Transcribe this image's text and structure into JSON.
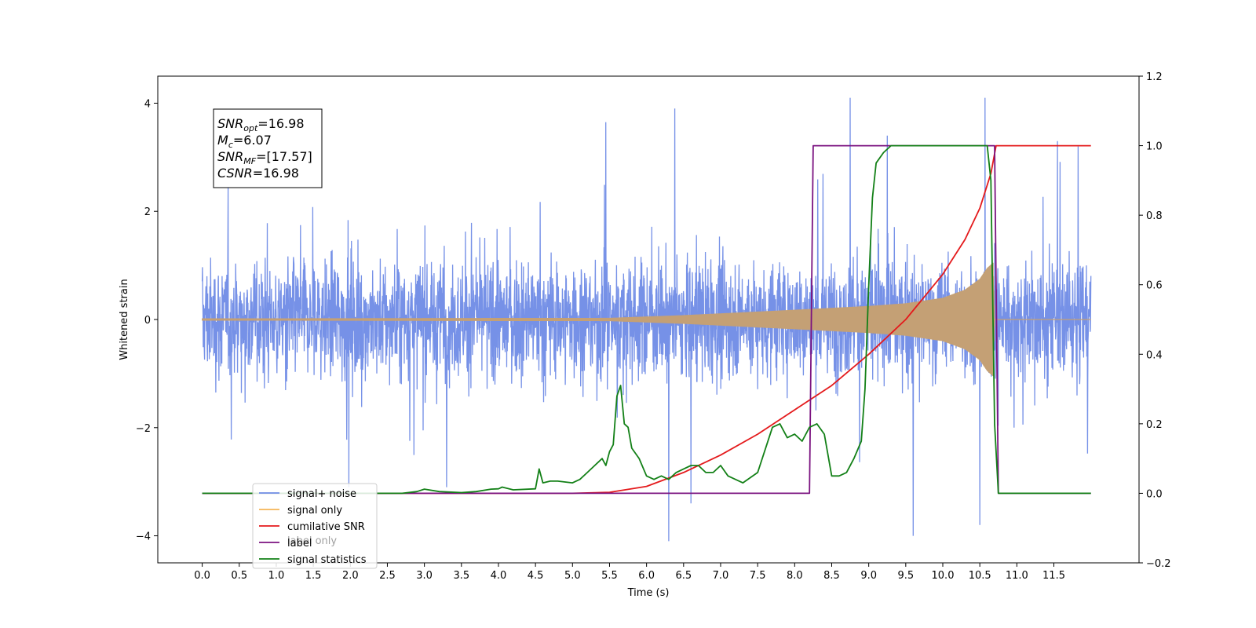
{
  "chart_data": {
    "type": "line",
    "xlabel": "Time (s)",
    "ylabel_left": "Whitened strain",
    "ylabel_right": "",
    "xlim": [
      -0.6,
      12.65
    ],
    "ylim_left": [
      -4.5,
      4.5
    ],
    "ylim_right": [
      -0.2,
      1.2
    ],
    "x_ticks": [
      0.0,
      0.5,
      1.0,
      1.5,
      2.0,
      2.5,
      3.0,
      3.5,
      4.0,
      4.5,
      5.0,
      5.5,
      6.0,
      6.5,
      7.0,
      7.5,
      8.0,
      8.5,
      9.0,
      9.5,
      10.0,
      10.5,
      11.0,
      11.5
    ],
    "x_tick_labels": [
      "0.0",
      "0.5",
      "1.0",
      "1.5",
      "2.0",
      "2.5",
      "3.0",
      "3.5",
      "4.0",
      "4.5",
      "5.0",
      "5.5",
      "6.0",
      "6.5",
      "7.0",
      "7.5",
      "8.0",
      "8.5",
      "9.0",
      "9.5",
      "10.0",
      "10.5",
      "11.0",
      "11.5"
    ],
    "y_left_ticks": [
      -4,
      -2,
      0,
      2,
      4
    ],
    "y_left_tick_labels": [
      "−4",
      "−2",
      "0",
      "2",
      "4"
    ],
    "y_right_ticks": [
      -0.2,
      0.0,
      0.2,
      0.4,
      0.6,
      0.8,
      1.0,
      1.2
    ],
    "y_right_tick_labels": [
      "−0.2",
      "0.0",
      "0.2",
      "0.4",
      "0.6",
      "0.8",
      "1.0",
      "1.2"
    ],
    "grid": false,
    "legend_position": "lower-left",
    "series": [
      {
        "name": "signal+ noise",
        "axis": "left",
        "color": "#6f8be6",
        "kind": "noise-trace",
        "x_range": [
          0.0,
          12.0
        ],
        "amplitude_typical": 1.0,
        "extremes": [
          {
            "x": 1.98,
            "y": -3.1
          },
          {
            "x": 5.45,
            "y": 3.65
          },
          {
            "x": 6.38,
            "y": 3.9
          },
          {
            "x": 6.3,
            "y": -4.1
          },
          {
            "x": 8.75,
            "y": 4.1
          },
          {
            "x": 9.25,
            "y": 3.4
          },
          {
            "x": 9.6,
            "y": -4.0
          },
          {
            "x": 10.57,
            "y": 4.1
          },
          {
            "x": 10.5,
            "y": -3.8
          },
          {
            "x": 11.55,
            "y": 3.3
          },
          {
            "x": 3.3,
            "y": -3.1
          },
          {
            "x": 6.6,
            "y": -3.4
          }
        ]
      },
      {
        "name": "signal only",
        "axis": "left",
        "color": "#c4a075",
        "kind": "chirp",
        "x_range": [
          0.0,
          10.7
        ],
        "envelope": [
          [
            0.0,
            0.02
          ],
          [
            5.5,
            0.03
          ],
          [
            6.5,
            0.08
          ],
          [
            8.0,
            0.18
          ],
          [
            9.0,
            0.25
          ],
          [
            9.5,
            0.3
          ],
          [
            10.0,
            0.4
          ],
          [
            10.3,
            0.55
          ],
          [
            10.5,
            0.75
          ],
          [
            10.6,
            0.95
          ],
          [
            10.68,
            1.05
          ],
          [
            10.7,
            0.0
          ]
        ]
      },
      {
        "name": "cumilative SNR",
        "axis": "right",
        "color": "#e41a1c",
        "x": [
          0.0,
          4.0,
          5.0,
          5.5,
          6.0,
          6.5,
          7.0,
          7.5,
          8.0,
          8.5,
          9.0,
          9.5,
          10.0,
          10.3,
          10.5,
          10.65,
          10.72,
          10.75,
          12.0
        ],
        "y": [
          0.0,
          0.0,
          0.0,
          0.003,
          0.02,
          0.06,
          0.11,
          0.17,
          0.24,
          0.31,
          0.4,
          0.5,
          0.63,
          0.73,
          0.82,
          0.92,
          1.0,
          1.0,
          1.0
        ]
      },
      {
        "name": "label",
        "axis": "right",
        "color": "#7b1380",
        "x": [
          0.0,
          8.2,
          8.25,
          10.7,
          10.75,
          12.0
        ],
        "y": [
          0.0,
          0.0,
          1.0,
          1.0,
          0.0,
          0.0
        ]
      },
      {
        "name": "signal statistics",
        "axis": "right",
        "color": "#138017",
        "x": [
          0.0,
          2.7,
          2.9,
          3.0,
          3.2,
          3.5,
          3.7,
          3.9,
          4.0,
          4.05,
          4.2,
          4.5,
          4.55,
          4.6,
          4.7,
          4.8,
          5.0,
          5.1,
          5.2,
          5.3,
          5.4,
          5.45,
          5.5,
          5.55,
          5.6,
          5.65,
          5.7,
          5.75,
          5.8,
          5.9,
          6.0,
          6.1,
          6.2,
          6.3,
          6.4,
          6.5,
          6.6,
          6.7,
          6.8,
          6.9,
          7.0,
          7.1,
          7.3,
          7.5,
          7.7,
          7.8,
          7.9,
          8.0,
          8.1,
          8.2,
          8.3,
          8.4,
          8.5,
          8.6,
          8.7,
          8.8,
          8.9,
          8.95,
          9.0,
          9.05,
          9.1,
          9.2,
          9.3,
          9.5,
          9.8,
          10.0,
          10.3,
          10.5,
          10.6,
          10.65,
          10.7,
          10.75,
          10.8,
          12.0
        ],
        "y": [
          0.0,
          0.0,
          0.005,
          0.012,
          0.005,
          0.002,
          0.005,
          0.012,
          0.013,
          0.018,
          0.01,
          0.013,
          0.07,
          0.03,
          0.035,
          0.035,
          0.03,
          0.04,
          0.06,
          0.08,
          0.1,
          0.08,
          0.12,
          0.14,
          0.28,
          0.31,
          0.2,
          0.19,
          0.13,
          0.1,
          0.05,
          0.04,
          0.05,
          0.04,
          0.06,
          0.07,
          0.08,
          0.08,
          0.06,
          0.06,
          0.08,
          0.05,
          0.03,
          0.06,
          0.19,
          0.2,
          0.16,
          0.17,
          0.15,
          0.19,
          0.2,
          0.17,
          0.05,
          0.05,
          0.06,
          0.1,
          0.15,
          0.3,
          0.6,
          0.85,
          0.95,
          0.98,
          1.0,
          1.0,
          1.0,
          1.0,
          1.0,
          1.0,
          1.0,
          0.9,
          0.2,
          0.0,
          0.0,
          0.0
        ]
      }
    ],
    "legend": [
      {
        "label": "signal+ noise",
        "color": "#6f8be6"
      },
      {
        "label": "signal only",
        "color": "#f5b556"
      },
      {
        "label": "cumilative SNR",
        "color": "#e41a1c"
      },
      {
        "label": "label",
        "color": "#7b1380"
      },
      {
        "label": "signal statistics",
        "color": "#138017"
      }
    ],
    "hidden_legend_text": "label only",
    "annotation": [
      {
        "base": "SNR",
        "sub": "opt",
        "rest": "=16.98"
      },
      {
        "base": "M",
        "sub": "c",
        "rest": "=6.07"
      },
      {
        "base": "SNR",
        "sub": "MF",
        "rest": "=[17.57]"
      },
      {
        "base": "CSNR",
        "sub": "",
        "rest": "=16.98"
      }
    ]
  }
}
